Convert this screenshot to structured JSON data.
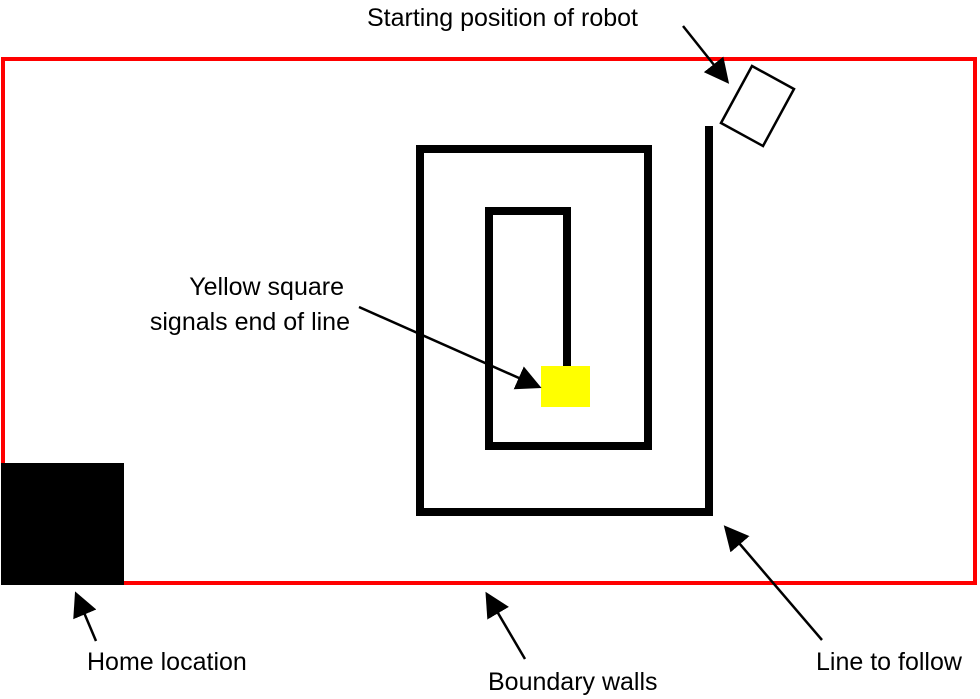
{
  "labels": {
    "start": "Starting position of robot",
    "yellow_line1": "Yellow square",
    "yellow_line2": "signals end of line",
    "home": "Home location",
    "boundary": "Boundary walls",
    "line": "Line to follow"
  },
  "colors": {
    "boundary": "#ff0000",
    "line": "#000000",
    "home": "#000000",
    "end_marker": "#ffff00",
    "robot_outline": "#000000",
    "background": "#ffffff"
  }
}
